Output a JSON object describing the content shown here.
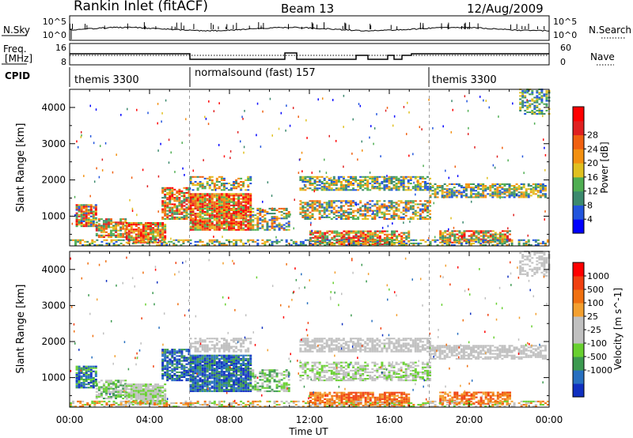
{
  "header": {
    "station": "Rankin Inlet (fitACF)",
    "beam": "Beam 13",
    "date": "12/Aug/2009"
  },
  "noise_panel": {
    "left_label": "N.Sky",
    "right_label": "N.Search",
    "left_ticks": [
      "10^5",
      "10^0"
    ],
    "right_ticks": [
      "10^5",
      "10^0"
    ]
  },
  "freq_panel": {
    "left_label_1": "Freq.",
    "left_label_2": "[MHz]",
    "right_label": "Nave",
    "left_ticks": [
      "16",
      "8"
    ],
    "right_ticks": [
      "60",
      "0"
    ]
  },
  "cpid_panel": {
    "label": "CPID",
    "segments": [
      {
        "start_hour": 0,
        "end_hour": 6,
        "name": "themis 3300"
      },
      {
        "start_hour": 6,
        "end_hour": 18,
        "name": "normalsound (fast) 157"
      },
      {
        "start_hour": 18,
        "end_hour": 24,
        "name": "themis 3300"
      }
    ]
  },
  "colors": {
    "power_scale": [
      "#0000ff",
      "#2255dd",
      "#3c8a6e",
      "#4fae52",
      "#e0c020",
      "#f39010",
      "#f06010",
      "#e02020",
      "#ff0000"
    ],
    "velocity_scale": [
      "#ff0000",
      "#f04010",
      "#f07010",
      "#f3a030",
      "#c0c0c0",
      "#c0c0c0",
      "#68d030",
      "#3c9a50",
      "#2870c0",
      "#1030c0"
    ]
  },
  "chart_data": [
    {
      "type": "heatmap",
      "title": "Power",
      "xlabel": "",
      "ylabel": "Slant Range [km]",
      "x_range": [
        0,
        24
      ],
      "y_range": [
        180,
        4500
      ],
      "x_ticks": [
        "00:00",
        "04:00",
        "08:00",
        "12:00",
        "16:00",
        "20:00",
        "00:00"
      ],
      "y_ticks": [
        "1000",
        "2000",
        "3000",
        "4000"
      ],
      "colorbar": {
        "label": "Power [dB]",
        "ticks": [
          "4",
          "8",
          "12",
          "16",
          "20",
          "24",
          "28"
        ]
      }
    },
    {
      "type": "heatmap",
      "title": "Velocity",
      "xlabel": "Time UT",
      "ylabel": "Slant Range [km]",
      "x_range": [
        0,
        24
      ],
      "y_range": [
        180,
        4500
      ],
      "x_ticks": [
        "00:00",
        "04:00",
        "08:00",
        "12:00",
        "16:00",
        "20:00",
        "00:00"
      ],
      "y_ticks": [
        "1000",
        "2000",
        "3000",
        "4000"
      ],
      "colorbar": {
        "label": "Velocity [m s^-1]",
        "ticks": [
          "1000",
          "500",
          "100",
          "25",
          "-25",
          "-100",
          "-500",
          "-1000"
        ]
      }
    }
  ]
}
